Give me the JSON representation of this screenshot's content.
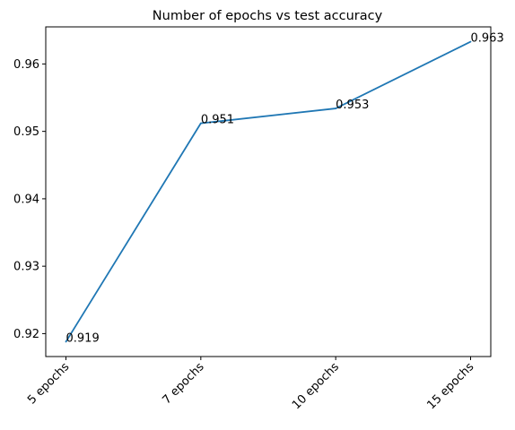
{
  "chart_data": {
    "type": "line",
    "title": "Number of epochs vs test accuracy",
    "xlabel": "",
    "ylabel": "",
    "categories": [
      "5 epochs",
      "7 epochs",
      "10 epochs",
      "15 epochs"
    ],
    "series": [
      {
        "values": [
          0.9188,
          0.9512,
          0.9534,
          0.9633
        ],
        "color": "#1f77b4"
      }
    ],
    "data_labels": [
      "0.919",
      "0.951",
      "0.953",
      "0.963"
    ],
    "yticks": [
      "0.92",
      "0.93",
      "0.94",
      "0.95",
      "0.96"
    ],
    "ylim": [
      0.9166,
      0.9655
    ],
    "grid": false,
    "legend": "none"
  }
}
